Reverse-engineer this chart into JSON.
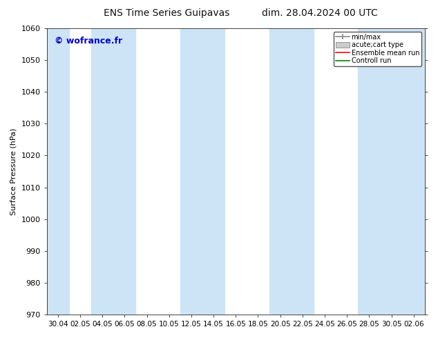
{
  "title": "ENS Time Series Guipavas",
  "title2": "dim. 28.04.2024 00 UTC",
  "ylabel": "Surface Pressure (hPa)",
  "ylim": [
    970,
    1060
  ],
  "yticks": [
    970,
    980,
    990,
    1000,
    1010,
    1020,
    1030,
    1040,
    1050,
    1060
  ],
  "x_labels": [
    "30.04",
    "02.05",
    "04.05",
    "06.05",
    "08.05",
    "10.05",
    "12.05",
    "14.05",
    "16.05",
    "18.05",
    "20.05",
    "22.05",
    "24.05",
    "26.05",
    "28.05",
    "30.05",
    "02.06"
  ],
  "watermark": "© wofrance.fr",
  "watermark_color": "#0000cc",
  "bg_color": "#ffffff",
  "plot_bg_color": "#ffffff",
  "shaded_band_color": "#cce4f5",
  "shaded_band_alpha": 1.0,
  "legend_labels": [
    "min/max",
    "acute;cart type",
    "Ensemble mean run",
    "Controll run"
  ],
  "legend_colors_handle": [
    "#999999",
    "#bbbbbb",
    "#ff0000",
    "#008800"
  ],
  "font_size": 8,
  "title_font_size": 10,
  "ylabel_fontsize": 8
}
